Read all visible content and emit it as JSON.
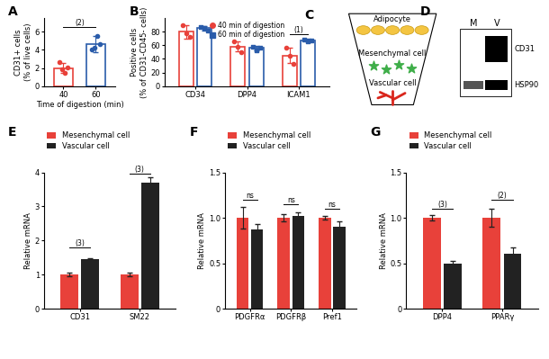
{
  "chart_data": [
    {
      "panel": "A",
      "type": "bar",
      "categories": [
        "40",
        "60"
      ],
      "values": [
        2.0,
        4.6
      ],
      "errors": [
        0.5,
        0.9
      ],
      "points": [
        [
          2.6,
          1.9,
          1.5,
          2.1
        ],
        [
          4.0,
          4.2,
          5.5,
          4.6
        ]
      ],
      "colors": [
        "#e8413a",
        "#2a5caa"
      ],
      "marker": "o",
      "xlabel": "Time of digestion (min)",
      "ylabel": "CD31+ cells\n(% of live cells)",
      "ylim": [
        0,
        7.5
      ],
      "yticks": [
        0,
        2,
        4,
        6
      ],
      "significance": [
        {
          "text": "(2)",
          "from": "40",
          "to": "60",
          "y": 6.5
        }
      ]
    },
    {
      "panel": "B",
      "type": "bar",
      "categories": [
        "CD34",
        "DPP4",
        "ICAM1"
      ],
      "series": [
        {
          "name": "40 min of digestion",
          "color": "#e8413a",
          "marker": "o",
          "values": [
            80,
            58,
            45
          ],
          "errors": [
            10,
            7,
            11
          ],
          "points": [
            [
              90,
              78,
              72
            ],
            [
              66,
              58,
              50
            ],
            [
              57,
              45,
              33
            ]
          ]
        },
        {
          "name": "60 min of digestion",
          "color": "#2a5caa",
          "marker": "s",
          "values": [
            85,
            56,
            67
          ],
          "errors": [
            3,
            3,
            2
          ],
          "points": [
            [
              87,
              86,
              82
            ],
            [
              58,
              53,
              57
            ],
            [
              68,
              66,
              67
            ]
          ]
        }
      ],
      "ylabel": "Positive cells\n(% of CD31-CD45- cells)",
      "ylim": [
        0,
        100
      ],
      "yticks": [
        0,
        20,
        40,
        60,
        80
      ],
      "legend": "upper center",
      "significance": [
        {
          "text": "(1)",
          "category": "ICAM1",
          "y": 76
        }
      ]
    },
    {
      "panel": "E",
      "type": "bar",
      "categories": [
        "CD31",
        "SM22"
      ],
      "series": [
        {
          "name": "Mesenchymal cell",
          "color": "#e8413a",
          "values": [
            1.0,
            1.0
          ],
          "errors": [
            0.05,
            0.05
          ]
        },
        {
          "name": "Vascular cell",
          "color": "#222222",
          "values": [
            1.45,
            3.7
          ],
          "errors": [
            0.04,
            0.15
          ]
        }
      ],
      "ylabel": "Relative mRNA",
      "ylim": [
        0,
        4
      ],
      "yticks": [
        0,
        1,
        2,
        3,
        4
      ],
      "legend": "upper left",
      "significance": [
        {
          "text": "(3)",
          "category": "CD31",
          "y": 1.8
        },
        {
          "text": "(3)",
          "category": "SM22",
          "y": 3.95
        }
      ]
    },
    {
      "panel": "F",
      "type": "bar",
      "categories": [
        "PDGFRα",
        "PDGFRβ",
        "Pref1"
      ],
      "series": [
        {
          "name": "Mesenchymal cell",
          "color": "#e8413a",
          "values": [
            1.0,
            1.0,
            1.0
          ],
          "errors": [
            0.12,
            0.04,
            0.02
          ]
        },
        {
          "name": "Vascular cell",
          "color": "#222222",
          "values": [
            0.87,
            1.02,
            0.9
          ],
          "errors": [
            0.06,
            0.04,
            0.06
          ]
        }
      ],
      "ylabel": "Relative mRNA",
      "ylim": [
        0,
        1.5
      ],
      "yticks": [
        0,
        0.5,
        {
          "value": 1,
          "label": "1.0"
        },
        1.5
      ],
      "legend": "upper left",
      "significance": [
        {
          "text": "ns",
          "category": "PDGFRα",
          "y": 1.2
        },
        {
          "text": "ns",
          "category": "PDGFRβ",
          "y": 1.15
        },
        {
          "text": "ns",
          "category": "Pref1",
          "y": 1.1
        }
      ]
    },
    {
      "panel": "G",
      "type": "bar",
      "categories": [
        "DPP4",
        "PPARγ"
      ],
      "series": [
        {
          "name": "Mesenchymal cell",
          "color": "#e8413a",
          "values": [
            1.0,
            1.0
          ],
          "errors": [
            0.03,
            0.1
          ]
        },
        {
          "name": "Vascular cell",
          "color": "#222222",
          "values": [
            0.5,
            0.6
          ],
          "errors": [
            0.03,
            0.07
          ]
        }
      ],
      "ylabel": "Relative mRNA",
      "ylim": [
        0,
        1.5
      ],
      "yticks": [
        0,
        0.5,
        {
          "value": 1,
          "label": "1.0"
        },
        1.5
      ],
      "legend": "upper left",
      "significance": [
        {
          "text": "(3)",
          "category": "DPP4",
          "y": 1.1
        },
        {
          "text": "(2)",
          "category": "PPARγ",
          "y": 1.2
        }
      ]
    }
  ],
  "diagram": {
    "panel": "C",
    "labels": [
      "Adipocyte",
      "Mesenchymal cell",
      "Vascular cell"
    ]
  },
  "blot": {
    "panel": "D",
    "lanes": [
      "M",
      "V"
    ],
    "bands": [
      "CD31",
      "HSP90"
    ]
  }
}
